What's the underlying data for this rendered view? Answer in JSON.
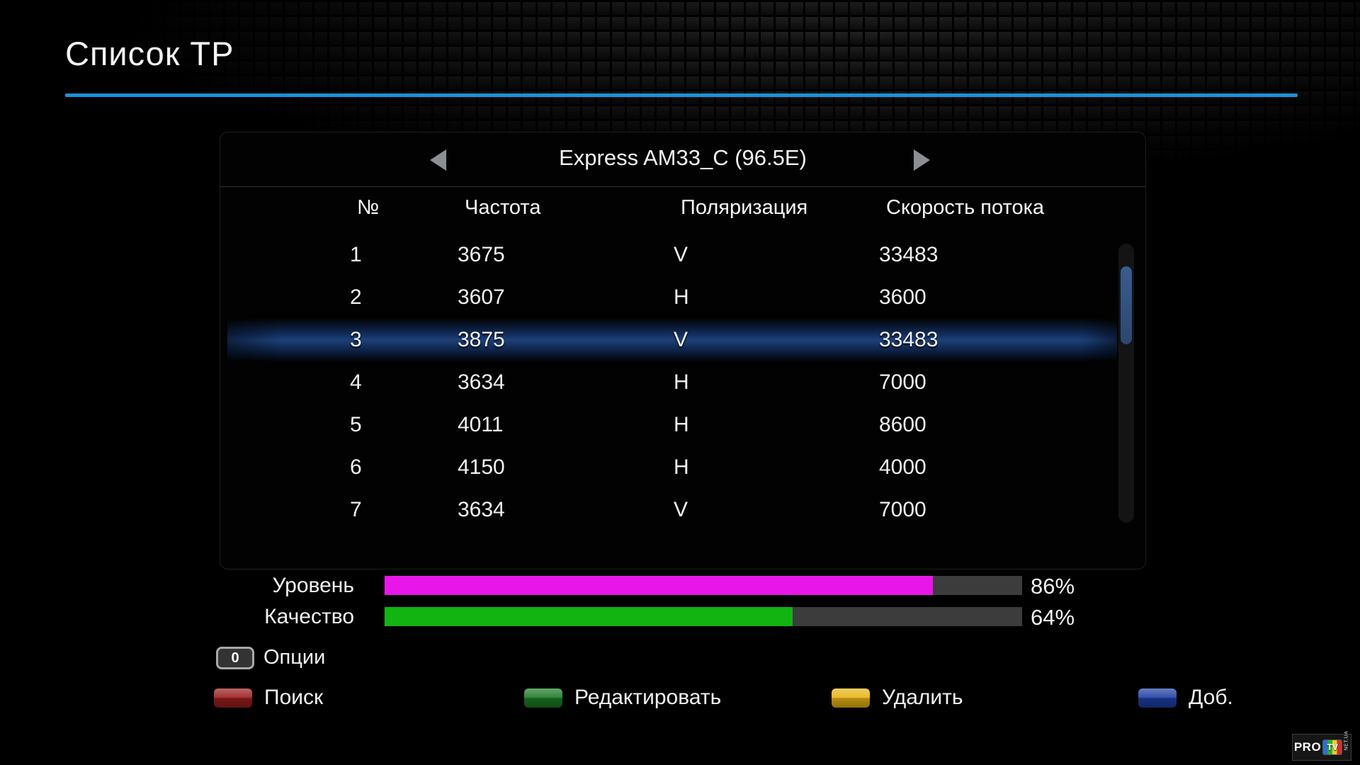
{
  "page": {
    "title": "Список ТР"
  },
  "colors": {
    "accent_line": "#1892d8",
    "selection": "#1d4078",
    "level_bar": "#e816e8",
    "quality_bar": "#11b411",
    "bar_background": "#3c3c3c"
  },
  "panel": {
    "satellite": "Express AM33_C (96.5E)",
    "columns": {
      "num": "№",
      "freq": "Частота",
      "pol": "Поляризация",
      "sr": "Скорость потока"
    },
    "rows": [
      {
        "num": "1",
        "freq": "3675",
        "pol": "V",
        "sr": "33483",
        "selected": false
      },
      {
        "num": "2",
        "freq": "3607",
        "pol": "H",
        "sr": "3600",
        "selected": false
      },
      {
        "num": "3",
        "freq": "3875",
        "pol": "V",
        "sr": "33483",
        "selected": true
      },
      {
        "num": "4",
        "freq": "3634",
        "pol": "H",
        "sr": "7000",
        "selected": false
      },
      {
        "num": "5",
        "freq": "4011",
        "pol": "H",
        "sr": "8600",
        "selected": false
      },
      {
        "num": "6",
        "freq": "4150",
        "pol": "H",
        "sr": "4000",
        "selected": false
      },
      {
        "num": "7",
        "freq": "3634",
        "pol": "V",
        "sr": "7000",
        "selected": false
      }
    ]
  },
  "signal": {
    "level_label": "Уровень",
    "level_percent": 86,
    "level_text": "86%",
    "quality_label": "Качество",
    "quality_percent": 64,
    "quality_text": "64%"
  },
  "options": {
    "key": "0",
    "label": "Опции"
  },
  "buttons": [
    {
      "color_name": "red",
      "color": "#9a1d1d",
      "label": "Поиск"
    },
    {
      "color_name": "green",
      "color": "#1d7a26",
      "label": "Редактировать"
    },
    {
      "color_name": "yellow",
      "color": "#e8b413",
      "label": "Удалить"
    },
    {
      "color_name": "blue",
      "color": "#1d3fa4",
      "label": "Доб."
    }
  ],
  "watermark": {
    "pro": "PRO",
    "tv": "TV",
    "net": "NET.UA"
  }
}
